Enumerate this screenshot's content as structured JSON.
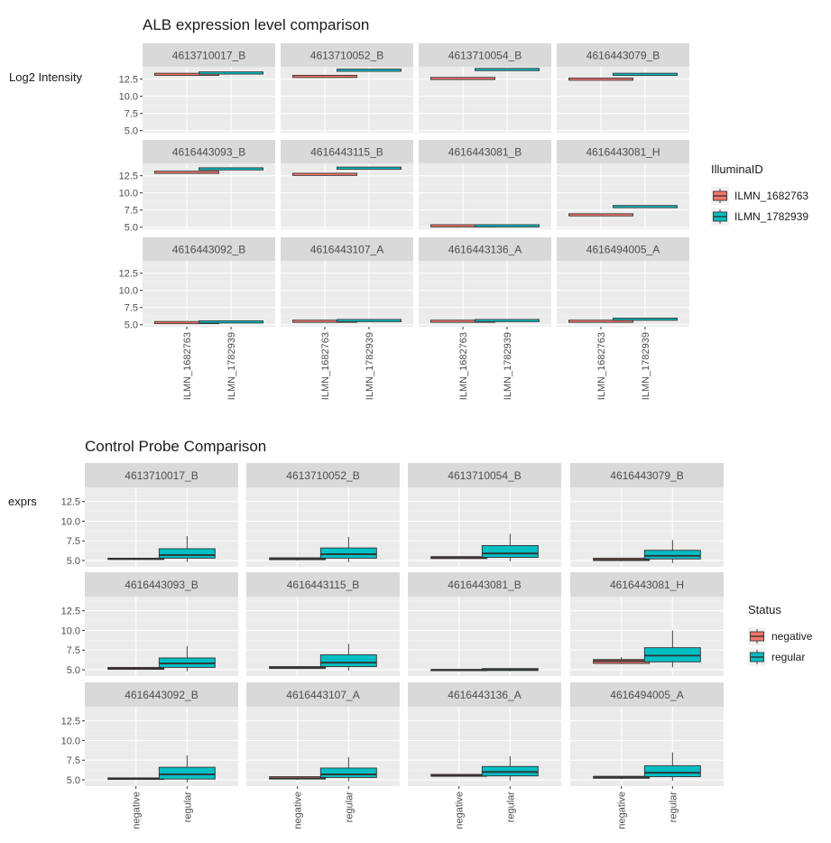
{
  "colors": {
    "panel_bg": "#EBEBEB",
    "strip_bg": "#D9D9D9",
    "grid_major": "#FFFFFF",
    "grid_minor": "#F2F2F2",
    "text": "#1A1A1A",
    "tick_text": "#4D4D4D",
    "series_1": "#F8766D",
    "series_2": "#00BFC4"
  },
  "chart_data": [
    {
      "type": "boxplot",
      "title": "ALB expression level comparison",
      "ylabel": "Log2 Intensity",
      "xlabel": "",
      "ylim": [
        4.7,
        14.3
      ],
      "yticks": [
        5.0,
        7.5,
        10.0,
        12.5
      ],
      "ytick_labels": [
        "5.0",
        "7.5",
        "10.0",
        "12.5"
      ],
      "categories": [
        "ILMN_1682763",
        "ILMN_1782939"
      ],
      "legend": {
        "title": "IlluminaID",
        "position": "right",
        "entries": [
          "ILMN_1682763",
          "ILMN_1782939"
        ]
      },
      "facet_layout": {
        "rows": 3,
        "cols": 4
      },
      "facets": [
        {
          "label": "4613710017_B",
          "values": [
            13.2,
            13.4
          ]
        },
        {
          "label": "4613710052_B",
          "values": [
            12.9,
            13.8
          ]
        },
        {
          "label": "4613710054_B",
          "values": [
            12.6,
            13.9
          ]
        },
        {
          "label": "4616443079_B",
          "values": [
            12.5,
            13.2
          ]
        },
        {
          "label": "4616443093_B",
          "values": [
            13.0,
            13.5
          ]
        },
        {
          "label": "4616443115_B",
          "values": [
            12.7,
            13.6
          ]
        },
        {
          "label": "4616443081_B",
          "values": [
            5.2,
            5.2
          ]
        },
        {
          "label": "4616443081_H",
          "values": [
            6.8,
            8.0
          ]
        },
        {
          "label": "4616443092_B",
          "values": [
            5.3,
            5.4
          ]
        },
        {
          "label": "4616443107_A",
          "values": [
            5.5,
            5.6
          ]
        },
        {
          "label": "4616443136_A",
          "values": [
            5.5,
            5.6
          ]
        },
        {
          "label": "4616494005_A",
          "values": [
            5.5,
            5.8
          ]
        }
      ]
    },
    {
      "type": "boxplot",
      "title": "Control Probe Comparison",
      "ylabel": "exprs",
      "xlabel": "",
      "ylim": [
        4.2,
        14.3
      ],
      "yticks": [
        5.0,
        7.5,
        10.0,
        12.5
      ],
      "ytick_labels": [
        "5.0",
        "7.5",
        "10.0",
        "12.5"
      ],
      "categories": [
        "negative",
        "regular"
      ],
      "legend": {
        "title": "Status",
        "position": "right",
        "entries": [
          "negative",
          "regular"
        ]
      },
      "facet_layout": {
        "rows": 3,
        "cols": 4
      },
      "facets": [
        {
          "label": "4613710017_B",
          "boxes": [
            {
              "min": 5.1,
              "q1": 5.15,
              "median": 5.2,
              "q3": 5.3,
              "max": 5.35
            },
            {
              "min": 4.8,
              "q1": 5.3,
              "median": 5.7,
              "q3": 6.5,
              "max": 8.1
            }
          ]
        },
        {
          "label": "4613710052_B",
          "boxes": [
            {
              "min": 5.0,
              "q1": 5.1,
              "median": 5.2,
              "q3": 5.35,
              "max": 5.4
            },
            {
              "min": 4.8,
              "q1": 5.3,
              "median": 5.8,
              "q3": 6.6,
              "max": 8.0
            }
          ]
        },
        {
          "label": "4613710054_B",
          "boxes": [
            {
              "min": 5.2,
              "q1": 5.25,
              "median": 5.35,
              "q3": 5.5,
              "max": 5.55
            },
            {
              "min": 4.9,
              "q1": 5.4,
              "median": 5.9,
              "q3": 6.9,
              "max": 8.4
            }
          ]
        },
        {
          "label": "4616443079_B",
          "boxes": [
            {
              "min": 4.9,
              "q1": 5.0,
              "median": 5.1,
              "q3": 5.3,
              "max": 5.35
            },
            {
              "min": 4.7,
              "q1": 5.2,
              "median": 5.6,
              "q3": 6.3,
              "max": 7.6
            }
          ]
        },
        {
          "label": "4616443093_B",
          "boxes": [
            {
              "min": 5.0,
              "q1": 5.05,
              "median": 5.15,
              "q3": 5.3,
              "max": 5.35
            },
            {
              "min": 4.8,
              "q1": 5.3,
              "median": 5.8,
              "q3": 6.5,
              "max": 8.0
            }
          ]
        },
        {
          "label": "4616443115_B",
          "boxes": [
            {
              "min": 5.1,
              "q1": 5.15,
              "median": 5.3,
              "q3": 5.4,
              "max": 5.45
            },
            {
              "min": 4.9,
              "q1": 5.4,
              "median": 5.9,
              "q3": 6.9,
              "max": 8.3
            }
          ]
        },
        {
          "label": "4616443081_B",
          "boxes": [
            {
              "min": 4.85,
              "q1": 4.9,
              "median": 4.95,
              "q3": 5.05,
              "max": 5.1
            },
            {
              "min": 4.8,
              "q1": 4.9,
              "median": 5.0,
              "q3": 5.15,
              "max": 5.2
            }
          ]
        },
        {
          "label": "4616443081_H",
          "boxes": [
            {
              "min": 5.7,
              "q1": 5.8,
              "median": 6.1,
              "q3": 6.3,
              "max": 6.6
            },
            {
              "min": 5.3,
              "q1": 6.0,
              "median": 6.8,
              "q3": 7.8,
              "max": 10.0
            }
          ]
        },
        {
          "label": "4616443092_B",
          "boxes": [
            {
              "min": 5.0,
              "q1": 5.05,
              "median": 5.15,
              "q3": 5.25,
              "max": 5.3
            },
            {
              "min": 4.7,
              "q1": 5.1,
              "median": 5.7,
              "q3": 6.6,
              "max": 8.1
            }
          ]
        },
        {
          "label": "4616443107_A",
          "boxes": [
            {
              "min": 5.0,
              "q1": 5.1,
              "median": 5.2,
              "q3": 5.4,
              "max": 5.45
            },
            {
              "min": 4.8,
              "q1": 5.3,
              "median": 5.7,
              "q3": 6.5,
              "max": 7.9
            }
          ]
        },
        {
          "label": "4616443136_A",
          "boxes": [
            {
              "min": 5.4,
              "q1": 5.45,
              "median": 5.55,
              "q3": 5.7,
              "max": 5.75
            },
            {
              "min": 4.9,
              "q1": 5.5,
              "median": 6.0,
              "q3": 6.7,
              "max": 8.0
            }
          ]
        },
        {
          "label": "4616494005_A",
          "boxes": [
            {
              "min": 5.1,
              "q1": 5.2,
              "median": 5.3,
              "q3": 5.45,
              "max": 5.5
            },
            {
              "min": 4.9,
              "q1": 5.4,
              "median": 5.9,
              "q3": 6.8,
              "max": 8.5
            }
          ]
        }
      ]
    }
  ]
}
